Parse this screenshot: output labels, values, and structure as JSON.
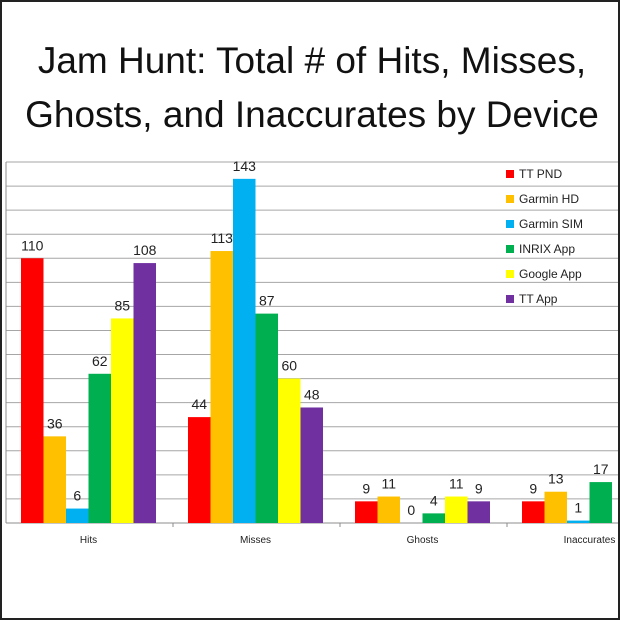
{
  "title_lines": [
    "Jam Hunt: Total # of Hits, Misses,",
    "Ghosts, and Inaccurates by Device"
  ],
  "chart_data": {
    "type": "bar",
    "title": "Jam Hunt: Total # of Hits, Misses, Ghosts, and Inaccurates by Device",
    "categories": [
      "Hits",
      "Misses",
      "Ghosts",
      "Inaccurates"
    ],
    "ylim": [
      0,
      150
    ],
    "grid": true,
    "legend_position": "top-right",
    "series": [
      {
        "name": "TT PND",
        "color": "#ff0000",
        "values": [
          110,
          44,
          9,
          9
        ]
      },
      {
        "name": "Garmin HD",
        "color": "#ffc000",
        "values": [
          36,
          113,
          11,
          13
        ]
      },
      {
        "name": "Garmin SIM",
        "color": "#00b0f0",
        "values": [
          6,
          143,
          0,
          1
        ]
      },
      {
        "name": "INRIX App",
        "color": "#00b050",
        "values": [
          62,
          87,
          4,
          17
        ]
      },
      {
        "name": "Google App",
        "color": "#ffff00",
        "values": [
          85,
          60,
          11,
          null
        ]
      },
      {
        "name": "TT App",
        "color": "#7030a0",
        "values": [
          108,
          48,
          9,
          null
        ]
      }
    ]
  }
}
